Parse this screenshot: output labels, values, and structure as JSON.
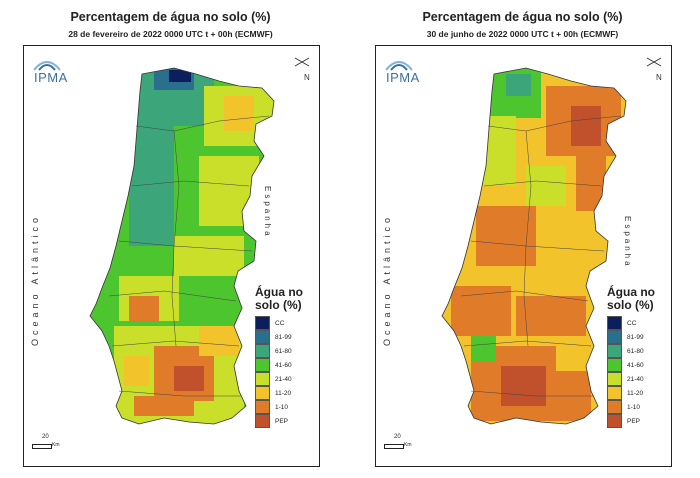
{
  "colors": {
    "cc": "#0b1f5c",
    "81-99": "#2a6f8e",
    "61-80": "#3da57a",
    "41-60": "#4cc52e",
    "21-40": "#c9df2a",
    "11-20": "#f2c32a",
    "1-10": "#e07b2a",
    "pep": "#c1502d"
  },
  "left": {
    "title": "Percentagem de água no solo (%)",
    "subtitle": "28 de fevereiro de 2022 0000 UTC t + 00h (ECMWF)"
  },
  "right": {
    "title": "Percentagem de água no solo (%)",
    "subtitle": "30 de junho de 2022 0000 UTC t + 00h (ECMWF)"
  },
  "logo_text": "IPMA",
  "north_label": "N",
  "ocean_label": "Oceano Atlântico",
  "spain_label": "Espanha",
  "scale": {
    "value": "20",
    "unit": "Km"
  },
  "legend": {
    "title_line1": "Água no",
    "title_line2": "solo (%)",
    "items": [
      {
        "label": "CC",
        "color": "#0b1f5c"
      },
      {
        "label": "81-99",
        "color": "#2a6f8e"
      },
      {
        "label": "61-80",
        "color": "#3da57a"
      },
      {
        "label": "41-60",
        "color": "#4cc52e"
      },
      {
        "label": "21-40",
        "color": "#c9df2a"
      },
      {
        "label": "11-20",
        "color": "#f2c32a"
      },
      {
        "label": "1-10",
        "color": "#e07b2a"
      },
      {
        "label": "PEP",
        "color": "#c1502d"
      }
    ]
  }
}
